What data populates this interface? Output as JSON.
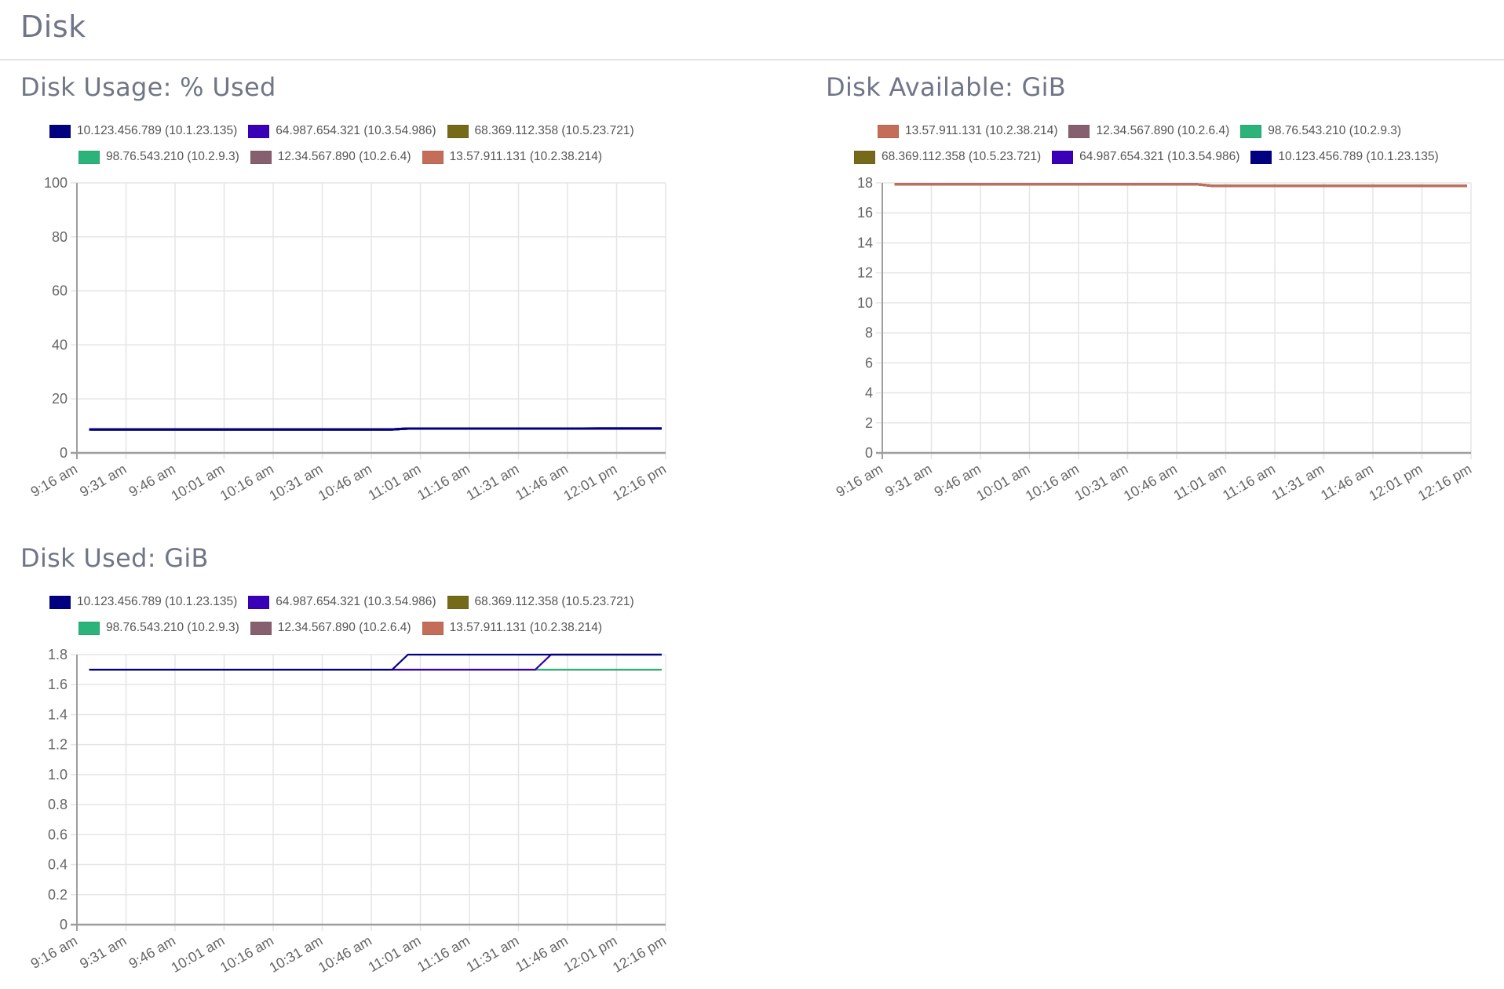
{
  "page": {
    "title": "Disk"
  },
  "colors": {
    "title_text": "#707687",
    "grid": "#e5e5e5",
    "axis": "#9e9e9e",
    "tick_text": "#666666"
  },
  "series_colors": {
    "10.123.456.789 (10.1.23.135)": "#000080",
    "64.987.654.321 (10.3.54.986)": "#3a00b8",
    "68.369.112.358 (10.5.23.721)": "#756a1a",
    "98.76.543.210 (10.2.9.3)": "#2bb37a",
    "12.34.567.890 (10.2.6.4)": "#87606f",
    "13.57.911.131 (10.2.38.214)": "#c46d58"
  },
  "panels": [
    {
      "title": "Disk Usage: % Used",
      "legend_rows": [
        [
          {
            "label": "10.123.456.789 (10.1.23.135)",
            "color": "#000080"
          },
          {
            "label": "64.987.654.321 (10.3.54.986)",
            "color": "#3a00b8"
          },
          {
            "label": "68.369.112.358 (10.5.23.721)",
            "color": "#756a1a"
          }
        ],
        [
          {
            "label": "98.76.543.210 (10.2.9.3)",
            "color": "#2bb37a"
          },
          {
            "label": "12.34.567.890 (10.2.6.4)",
            "color": "#87606f"
          },
          {
            "label": "13.57.911.131 (10.2.38.214)",
            "color": "#c46d58"
          }
        ]
      ]
    },
    {
      "title": "Disk Available: GiB",
      "legend_rows": [
        [
          {
            "label": "13.57.911.131 (10.2.38.214)",
            "color": "#c46d58"
          },
          {
            "label": "12.34.567.890 (10.2.6.4)",
            "color": "#87606f"
          },
          {
            "label": "98.76.543.210 (10.2.9.3)",
            "color": "#2bb37a"
          }
        ],
        [
          {
            "label": "68.369.112.358 (10.5.23.721)",
            "color": "#756a1a"
          },
          {
            "label": "64.987.654.321 (10.3.54.986)",
            "color": "#3a00b8"
          },
          {
            "label": "10.123.456.789 (10.1.23.135)",
            "color": "#000080"
          }
        ]
      ]
    },
    {
      "title": "Disk Used: GiB",
      "legend_rows": [
        [
          {
            "label": "10.123.456.789 (10.1.23.135)",
            "color": "#000080"
          },
          {
            "label": "64.987.654.321 (10.3.54.986)",
            "color": "#3a00b8"
          },
          {
            "label": "68.369.112.358 (10.5.23.721)",
            "color": "#756a1a"
          }
        ],
        [
          {
            "label": "98.76.543.210 (10.2.9.3)",
            "color": "#2bb37a"
          },
          {
            "label": "12.34.567.890 (10.2.6.4)",
            "color": "#87606f"
          },
          {
            "label": "13.57.911.131 (10.2.38.214)",
            "color": "#c46d58"
          }
        ]
      ]
    }
  ],
  "chart_data": [
    {
      "type": "line",
      "title": "Disk Usage: % Used",
      "xlabel": "",
      "ylabel": "",
      "x": [
        "9:16 am",
        "9:31 am",
        "9:46 am",
        "10:01 am",
        "10:16 am",
        "10:31 am",
        "10:46 am",
        "11:01 am",
        "11:16 am",
        "11:31 am",
        "11:46 am",
        "12:01 pm",
        "12:16 pm"
      ],
      "yticks": [
        0,
        20,
        40,
        60,
        80,
        100
      ],
      "ylim": [
        0,
        100
      ],
      "grid": true,
      "legend_position": "top",
      "series": [
        {
          "name": "13.57.911.131 (10.2.38.214)",
          "values": [
            8.7,
            8.7,
            8.7,
            8.7,
            8.7,
            8.7,
            8.7,
            9.0,
            9.0,
            9.0,
            9.0,
            9.0,
            9.0
          ]
        },
        {
          "name": "12.34.567.890 (10.2.6.4)",
          "values": [
            8.7,
            8.7,
            8.7,
            8.7,
            8.7,
            8.7,
            8.7,
            9.0,
            9.0,
            9.0,
            9.0,
            9.0,
            9.0
          ]
        },
        {
          "name": "98.76.543.210 (10.2.9.3)",
          "values": [
            8.7,
            8.7,
            8.7,
            8.7,
            8.7,
            8.7,
            8.7,
            9.0,
            9.0,
            9.0,
            9.0,
            9.0,
            9.0
          ]
        },
        {
          "name": "68.369.112.358 (10.5.23.721)",
          "values": [
            8.7,
            8.7,
            8.7,
            8.7,
            8.7,
            8.7,
            8.7,
            9.0,
            9.0,
            9.0,
            9.0,
            9.0,
            9.0
          ]
        },
        {
          "name": "64.987.654.321 (10.3.54.986)",
          "values": [
            8.7,
            8.7,
            8.7,
            8.7,
            8.7,
            8.7,
            8.7,
            9.0,
            9.0,
            9.0,
            9.0,
            9.0,
            9.0
          ]
        },
        {
          "name": "10.123.456.789 (10.1.23.135)",
          "values": [
            8.7,
            8.7,
            8.7,
            8.7,
            8.7,
            8.7,
            8.7,
            9.0,
            9.0,
            9.0,
            9.0,
            9.1,
            9.1
          ]
        }
      ],
      "points": {
        "x_start_offset": 0.25,
        "note": "lines begin slightly after 9:16 am and end slightly before 12:16 pm"
      }
    },
    {
      "type": "line",
      "title": "Disk Available: GiB",
      "xlabel": "",
      "ylabel": "",
      "x": [
        "9:16 am",
        "9:31 am",
        "9:46 am",
        "10:01 am",
        "10:16 am",
        "10:31 am",
        "10:46 am",
        "11:01 am",
        "11:16 am",
        "11:31 am",
        "11:46 am",
        "12:01 pm",
        "12:16 pm"
      ],
      "yticks": [
        0,
        2,
        4,
        6,
        8,
        10,
        12,
        14,
        16,
        18
      ],
      "ylim": [
        0,
        18
      ],
      "grid": true,
      "legend_position": "top",
      "series": [
        {
          "name": "10.123.456.789 (10.1.23.135)",
          "values": [
            17.9,
            17.9,
            17.9,
            17.9,
            17.9,
            17.9,
            17.9,
            17.8,
            17.8,
            17.8,
            17.8,
            17.8,
            17.8
          ]
        },
        {
          "name": "64.987.654.321 (10.3.54.986)",
          "values": [
            17.9,
            17.9,
            17.9,
            17.9,
            17.9,
            17.9,
            17.9,
            17.8,
            17.8,
            17.8,
            17.8,
            17.8,
            17.8
          ]
        },
        {
          "name": "68.369.112.358 (10.5.23.721)",
          "values": [
            17.9,
            17.9,
            17.9,
            17.9,
            17.9,
            17.9,
            17.9,
            17.8,
            17.8,
            17.8,
            17.8,
            17.8,
            17.8
          ]
        },
        {
          "name": "98.76.543.210 (10.2.9.3)",
          "values": [
            17.9,
            17.9,
            17.9,
            17.9,
            17.9,
            17.9,
            17.9,
            17.8,
            17.8,
            17.8,
            17.8,
            17.8,
            17.8
          ]
        },
        {
          "name": "12.34.567.890 (10.2.6.4)",
          "values": [
            17.9,
            17.9,
            17.9,
            17.9,
            17.9,
            17.9,
            17.9,
            17.8,
            17.8,
            17.8,
            17.8,
            17.8,
            17.8
          ]
        },
        {
          "name": "13.57.911.131 (10.2.38.214)",
          "values": [
            17.9,
            17.9,
            17.9,
            17.9,
            17.9,
            17.9,
            17.9,
            17.8,
            17.8,
            17.8,
            17.8,
            17.8,
            17.8
          ]
        }
      ]
    },
    {
      "type": "line",
      "title": "Disk Used: GiB",
      "xlabel": "",
      "ylabel": "",
      "x": [
        "9:16 am",
        "9:31 am",
        "9:46 am",
        "10:01 am",
        "10:16 am",
        "10:31 am",
        "10:46 am",
        "11:01 am",
        "11:16 am",
        "11:31 am",
        "11:46 am",
        "12:01 pm",
        "12:16 pm"
      ],
      "yticks": [
        0,
        0.2,
        0.4,
        0.6,
        0.8,
        1.0,
        1.2,
        1.4,
        1.6,
        1.8
      ],
      "ytick_labels": [
        "0",
        "0.2",
        "0.4",
        "0.6",
        "0.8",
        "1.0",
        "1.2",
        "1.4",
        "1.6",
        "1.8"
      ],
      "ylim": [
        0,
        1.8
      ],
      "grid": true,
      "legend_position": "top",
      "series": [
        {
          "name": "13.57.911.131 (10.2.38.214)",
          "values": [
            1.7,
            1.7,
            1.7,
            1.7,
            1.7,
            1.7,
            1.7,
            1.7,
            1.7,
            1.7,
            1.7,
            1.7,
            1.7
          ]
        },
        {
          "name": "12.34.567.890 (10.2.6.4)",
          "values": [
            1.7,
            1.7,
            1.7,
            1.7,
            1.7,
            1.7,
            1.7,
            1.7,
            1.7,
            1.7,
            1.7,
            1.7,
            1.7
          ]
        },
        {
          "name": "98.76.543.210 (10.2.9.3)",
          "values": [
            1.7,
            1.7,
            1.7,
            1.7,
            1.7,
            1.7,
            1.7,
            1.7,
            1.7,
            1.7,
            1.7,
            1.7,
            1.7
          ]
        },
        {
          "name": "68.369.112.358 (10.5.23.721)",
          "values": [
            1.7,
            1.7,
            1.7,
            1.7,
            1.7,
            1.7,
            1.7,
            1.7,
            1.7,
            1.7,
            1.8,
            1.8,
            1.8
          ]
        },
        {
          "name": "64.987.654.321 (10.3.54.986)",
          "values": [
            1.7,
            1.7,
            1.7,
            1.7,
            1.7,
            1.7,
            1.7,
            1.7,
            1.7,
            1.7,
            1.8,
            1.8,
            1.8
          ]
        },
        {
          "name": "10.123.456.789 (10.1.23.135)",
          "values": [
            1.7,
            1.7,
            1.7,
            1.7,
            1.7,
            1.7,
            1.7,
            1.8,
            1.8,
            1.8,
            1.8,
            1.8,
            1.8
          ]
        }
      ]
    }
  ]
}
